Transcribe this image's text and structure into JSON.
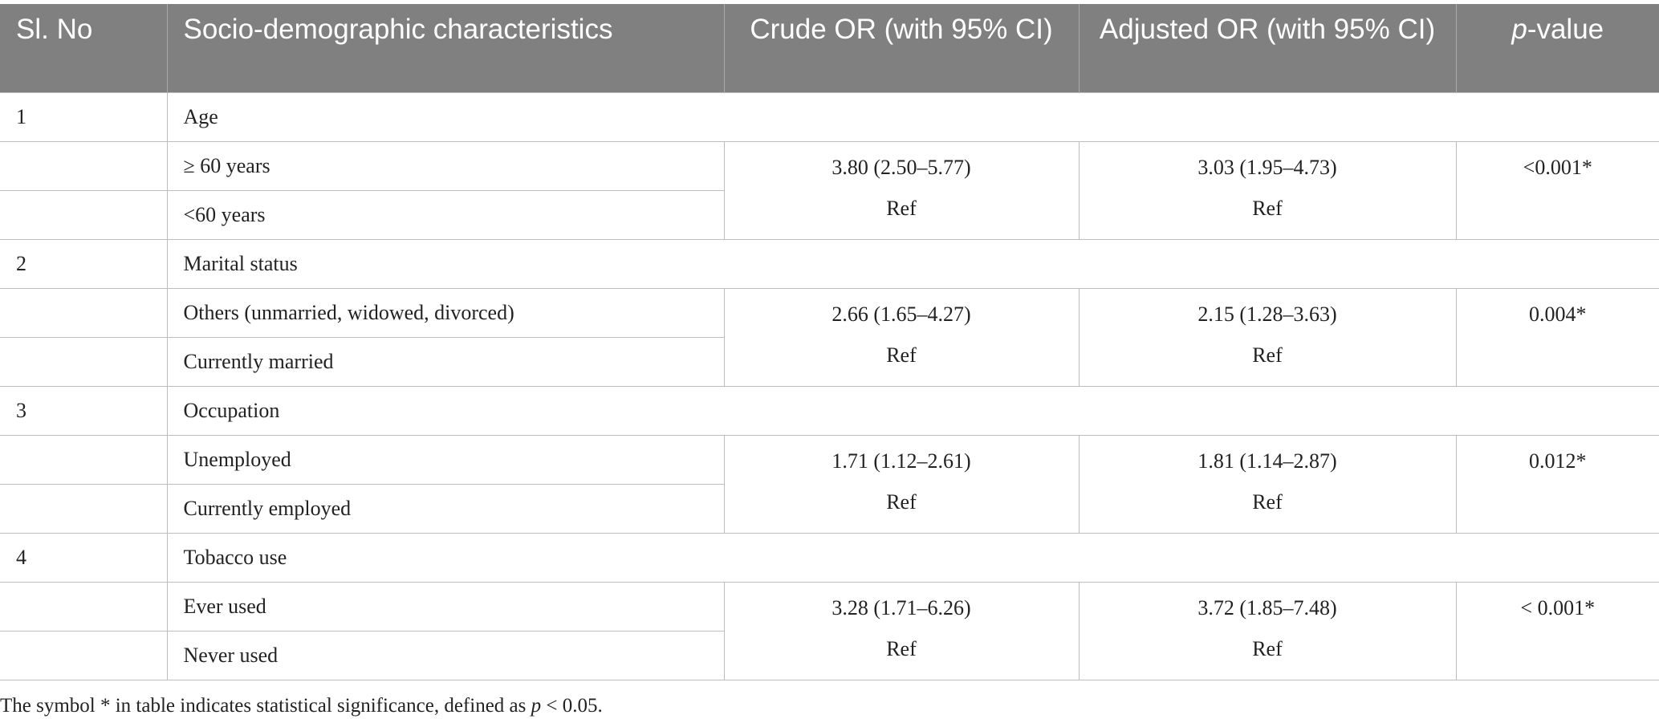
{
  "table": {
    "headers": {
      "sl_no": "Sl. No",
      "characteristics": "Socio-demographic characteristics",
      "crude": "Crude OR (with 95% CI)",
      "adjusted": "Adjusted OR (with 95% CI)",
      "p_italic": "p",
      "p_rest": "-value"
    },
    "groups": [
      {
        "no": "1",
        "name": "Age",
        "rows": [
          {
            "label": "≥ 60 years",
            "crude": "3.80 (2.50–5.77)",
            "adjusted": "3.03 (1.95–4.73)",
            "p": "<0.001*"
          },
          {
            "label": "<60 years",
            "crude": "Ref",
            "adjusted": "Ref"
          }
        ]
      },
      {
        "no": "2",
        "name": "Marital status",
        "rows": [
          {
            "label": "Others (unmarried, widowed, divorced)",
            "crude": "2.66 (1.65–4.27)",
            "adjusted": "2.15 (1.28–3.63)",
            "p": "0.004*"
          },
          {
            "label": "Currently married",
            "crude": "Ref",
            "adjusted": "Ref"
          }
        ]
      },
      {
        "no": "3",
        "name": "Occupation",
        "rows": [
          {
            "label": "Unemployed",
            "crude": "1.71 (1.12–2.61)",
            "adjusted": "1.81 (1.14–2.87)",
            "p": "0.012*"
          },
          {
            "label": "Currently employed",
            "crude": "Ref",
            "adjusted": "Ref"
          }
        ]
      },
      {
        "no": "4",
        "name": "Tobacco use",
        "rows": [
          {
            "label": "Ever used",
            "crude": "3.28 (1.71–6.26)",
            "adjusted": "3.72 (1.85–7.48)",
            "p": "< 0.001*"
          },
          {
            "label": "Never used",
            "crude": "Ref",
            "adjusted": "Ref"
          }
        ]
      }
    ]
  },
  "footnote": {
    "text_before": "The symbol * in table indicates statistical significance, defined as ",
    "p_italic": "p",
    "text_after": " < 0.05."
  },
  "colors": {
    "header_bg": "#808080",
    "header_text": "#ffffff",
    "grid_line": "#bdbdbd"
  }
}
